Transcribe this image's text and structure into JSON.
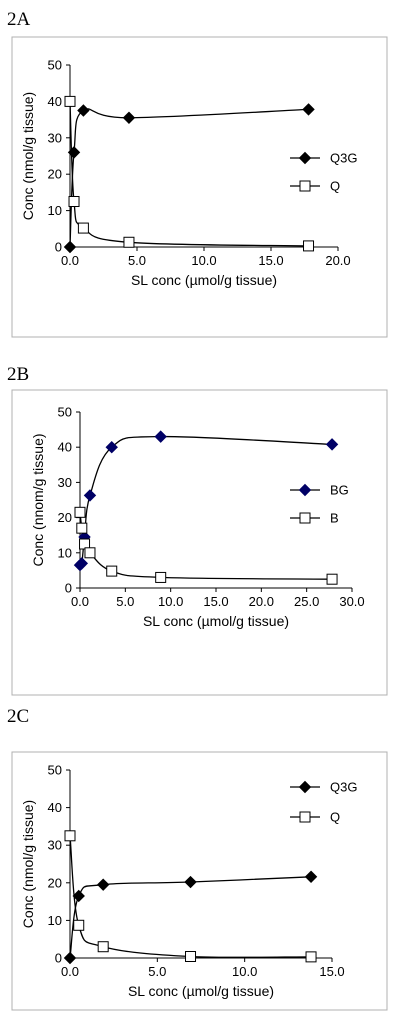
{
  "chart_data": [
    {
      "panel_label": "2A",
      "type": "line",
      "xlabel": "SL conc (µmol/g tissue)",
      "ylabel": "Conc (nmol/g tissue)",
      "xlim": [
        0,
        20
      ],
      "ylim": [
        0,
        50
      ],
      "x_ticks": [
        0,
        5,
        10,
        15,
        20
      ],
      "x_tick_labels": [
        "0.0",
        "5.0",
        "10.0",
        "15.0",
        "20.0"
      ],
      "y_ticks": [
        0,
        10,
        20,
        30,
        40,
        50
      ],
      "y_tick_labels": [
        "0",
        "10",
        "20",
        "30",
        "40",
        "50"
      ],
      "grid": false,
      "legend_position": "right",
      "series": [
        {
          "name": "Q3G",
          "marker": "filled-diamond",
          "color": "#000000",
          "points": [
            [
              0.0,
              0.0
            ],
            [
              0.3,
              26.0
            ],
            [
              1.0,
              37.5
            ],
            [
              4.4,
              35.5
            ],
            [
              17.8,
              37.8
            ]
          ]
        },
        {
          "name": "Q",
          "marker": "open-square",
          "color": "#000000",
          "points": [
            [
              0.0,
              40.0
            ],
            [
              0.3,
              12.5
            ],
            [
              1.0,
              5.2
            ],
            [
              4.4,
              1.3
            ],
            [
              17.8,
              0.3
            ]
          ]
        }
      ]
    },
    {
      "panel_label": "2B",
      "type": "line",
      "xlabel": "SL conc (µmol/g tissue)",
      "ylabel": "Conc (nnom/g tissue)",
      "xlim": [
        0,
        30
      ],
      "ylim": [
        0,
        50
      ],
      "x_ticks": [
        0,
        5,
        10,
        15,
        20,
        25,
        30
      ],
      "x_tick_labels": [
        "0.0",
        "5.0",
        "10.0",
        "15.0",
        "20.0",
        "25.0",
        "30.0"
      ],
      "y_ticks": [
        0,
        10,
        20,
        30,
        40,
        50
      ],
      "y_tick_labels": [
        "0",
        "10",
        "20",
        "30",
        "40",
        "50"
      ],
      "grid": false,
      "legend_position": "right",
      "series": [
        {
          "name": "BG",
          "marker": "filled-diamond",
          "color": "#000066",
          "points": [
            [
              0.0,
              6.5
            ],
            [
              0.2,
              7.0
            ],
            [
              0.5,
              14.5
            ],
            [
              1.1,
              26.3
            ],
            [
              3.5,
              40.0
            ],
            [
              8.9,
              43.0
            ],
            [
              27.8,
              40.8
            ]
          ]
        },
        {
          "name": "B",
          "marker": "open-square",
          "color": "#000000",
          "points": [
            [
              0.0,
              21.5
            ],
            [
              0.2,
              17.0
            ],
            [
              0.5,
              12.5
            ],
            [
              1.1,
              10.0
            ],
            [
              3.5,
              4.8
            ],
            [
              8.9,
              3.0
            ],
            [
              27.8,
              2.5
            ]
          ]
        }
      ]
    },
    {
      "panel_label": "2C",
      "type": "line",
      "xlabel": "SL conc (µmol/g tissue)",
      "ylabel": "Conc (nmol/g tissue)",
      "xlim": [
        0,
        15
      ],
      "ylim": [
        0,
        50
      ],
      "x_ticks": [
        0,
        5,
        10,
        15
      ],
      "x_tick_labels": [
        "0.0",
        "5.0",
        "10.0",
        "15.0"
      ],
      "y_ticks": [
        0,
        10,
        20,
        30,
        40,
        50
      ],
      "y_tick_labels": [
        "0",
        "10",
        "20",
        "30",
        "40",
        "50"
      ],
      "grid": false,
      "legend_position": "top-right",
      "series": [
        {
          "name": "Q3G",
          "marker": "filled-diamond",
          "color": "#000000",
          "points": [
            [
              0.0,
              0.0
            ],
            [
              0.5,
              16.5
            ],
            [
              1.9,
              19.5
            ],
            [
              6.9,
              20.2
            ],
            [
              13.8,
              21.6
            ]
          ]
        },
        {
          "name": "Q",
          "marker": "open-square",
          "color": "#000000",
          "points": [
            [
              0.0,
              32.5
            ],
            [
              0.5,
              8.7
            ],
            [
              1.9,
              3.0
            ],
            [
              6.9,
              0.4
            ],
            [
              13.8,
              0.3
            ]
          ]
        }
      ]
    }
  ]
}
